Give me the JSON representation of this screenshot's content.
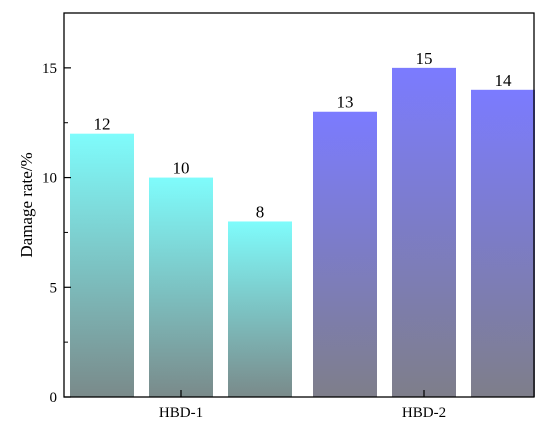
{
  "chart_data": {
    "type": "bar",
    "title": "",
    "xlabel": "",
    "ylabel": "Damage rate/%",
    "ylim": [
      0,
      17.5
    ],
    "yticks": [
      "0",
      "5",
      "10",
      "15"
    ],
    "groups": [
      {
        "name": "HBD-1",
        "values": [
          12,
          10,
          8
        ],
        "labels": [
          "12",
          "10",
          "8"
        ],
        "gradient_top": "#7ffcfc",
        "gradient_bottom": "#7a8a8a"
      },
      {
        "name": "HBD-2",
        "values": [
          13,
          15,
          14
        ],
        "labels": [
          "13",
          "15",
          "14"
        ],
        "gradient_top": "#7b7bff",
        "gradient_bottom": "#7e7e8a"
      }
    ],
    "grid": false,
    "legend": "none"
  }
}
